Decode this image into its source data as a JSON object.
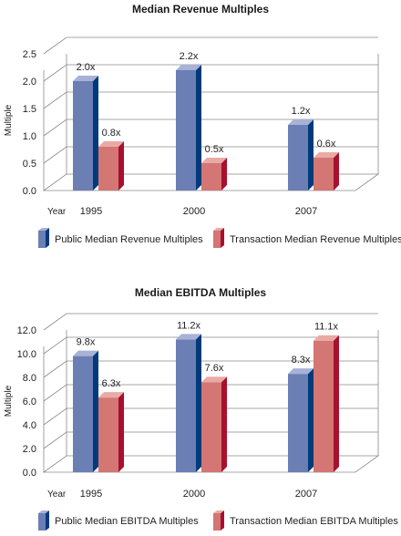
{
  "chart_data": [
    {
      "type": "bar",
      "title": "Median Revenue Multiples",
      "ylabel": "Multiple",
      "xlabel": "Year",
      "categories": [
        "1995",
        "2000",
        "2007"
      ],
      "ylim": [
        0,
        2.5
      ],
      "yticks": [
        "0.0",
        "0.5",
        "1.0",
        "1.5",
        "2.0",
        "2.5"
      ],
      "series": [
        {
          "name": "Public Median Revenue Multiples",
          "values": [
            2.0,
            2.2,
            1.2
          ],
          "labels": [
            "2.0x",
            "2.2x",
            "1.2x"
          ],
          "color": "#6b7fb5",
          "side_color": "#003a7a",
          "top_color": "#a7b2d6"
        },
        {
          "name": "Transaction Median Revenue Multiples",
          "values": [
            0.8,
            0.5,
            0.6
          ],
          "labels": [
            "0.8x",
            "0.5x",
            "0.6x"
          ],
          "color": "#d37674",
          "side_color": "#a8102e",
          "top_color": "#e9aaa6"
        }
      ],
      "grid": true,
      "legend_position": "bottom"
    },
    {
      "type": "bar",
      "title": "Median EBITDA Multiples",
      "ylabel": "Multiple",
      "xlabel": "Year",
      "categories": [
        "1995",
        "2000",
        "2007"
      ],
      "ylim": [
        0,
        12
      ],
      "yticks": [
        "0.0",
        "2.0",
        "4.0",
        "6.0",
        "8.0",
        "10.0",
        "12.0"
      ],
      "series": [
        {
          "name": "Public Median EBITDA Multiples",
          "values": [
            9.8,
            11.2,
            8.3
          ],
          "labels": [
            "9.8x",
            "11.2x",
            "8.3x"
          ],
          "color": "#6b7fb5",
          "side_color": "#003a7a",
          "top_color": "#a7b2d6"
        },
        {
          "name": "Transaction Median EBITDA Multiples",
          "values": [
            6.3,
            7.6,
            11.1
          ],
          "labels": [
            "6.3x",
            "7.6x",
            "11.1x"
          ],
          "color": "#d37674",
          "side_color": "#a8102e",
          "top_color": "#e9aaa6"
        }
      ],
      "grid": true,
      "legend_position": "bottom"
    }
  ]
}
